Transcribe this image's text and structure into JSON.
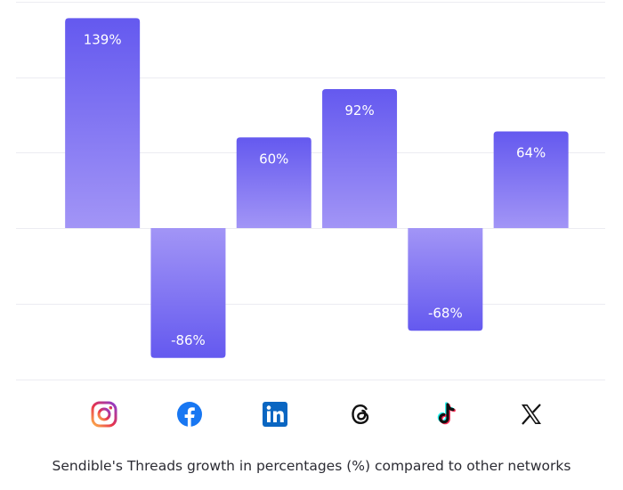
{
  "chart_data": {
    "type": "bar",
    "categories": [
      "Instagram",
      "Facebook",
      "LinkedIn",
      "Threads",
      "TikTok",
      "X"
    ],
    "values": [
      139,
      -86,
      60,
      92,
      -68,
      64
    ],
    "data_labels": [
      "139%",
      "-86%",
      "60%",
      "92%",
      "-68%",
      "64%"
    ],
    "ylim": [
      -100,
      150
    ],
    "grid": true,
    "legend": "none",
    "colors": {
      "bar_top": "#6459ef",
      "bar_base": "#a295f6"
    }
  },
  "icons": [
    {
      "name": "instagram-icon"
    },
    {
      "name": "facebook-icon"
    },
    {
      "name": "linkedin-icon"
    },
    {
      "name": "threads-icon"
    },
    {
      "name": "tiktok-icon"
    },
    {
      "name": "x-icon"
    }
  ],
  "caption": "Sendible's Threads growth in percentages (%) compared to other networks"
}
